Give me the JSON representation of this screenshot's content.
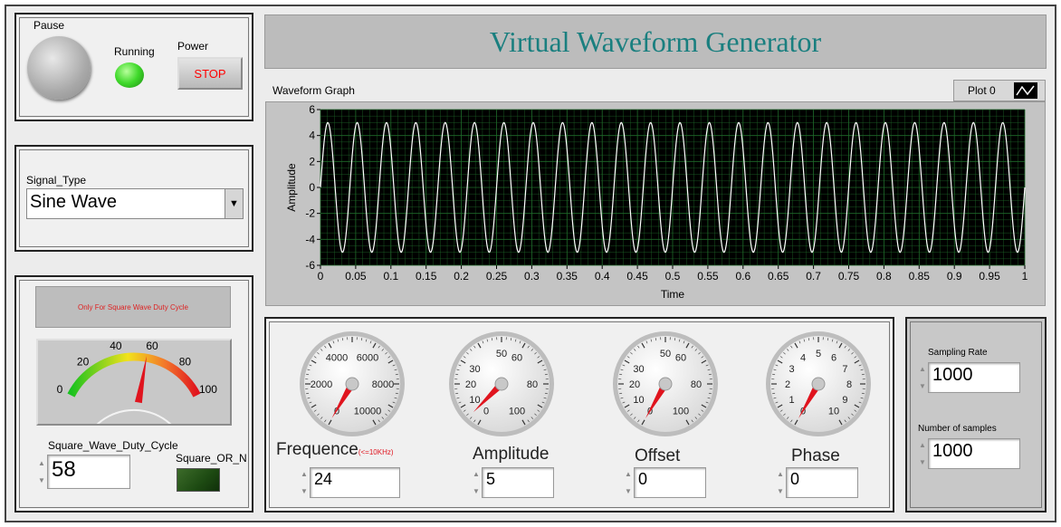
{
  "title": "Virtual Waveform Generator",
  "controls": {
    "pause_label": "Pause",
    "running_label": "Running",
    "power_label": "Power",
    "stop_button": "STOP"
  },
  "signal": {
    "label": "Signal_Type",
    "value": "Sine Wave"
  },
  "duty": {
    "note": "Only For Square Wave Duty Cycle",
    "ticks": [
      "0",
      "20",
      "40",
      "60",
      "80",
      "100"
    ],
    "value": 58,
    "label": "Square_Wave_Duty_Cycle",
    "value_text": "58",
    "led_label": "Square_OR_N"
  },
  "graph": {
    "label": "Waveform Graph",
    "plot_legend": "Plot 0",
    "xlabel": "Time",
    "ylabel": "Amplitude",
    "xticks": [
      "0",
      "0.05",
      "0.1",
      "0.15",
      "0.2",
      "0.25",
      "0.3",
      "0.35",
      "0.4",
      "0.45",
      "0.5",
      "0.55",
      "0.6",
      "0.65",
      "0.7",
      "0.75",
      "0.8",
      "0.85",
      "0.9",
      "0.95",
      "1"
    ],
    "yticks": [
      "6",
      "4",
      "2",
      "0",
      "-2",
      "-4",
      "-6"
    ]
  },
  "chart_data": {
    "type": "line",
    "function": "sine",
    "frequency": 24,
    "amplitude": 5,
    "offset": 0,
    "phase": 0,
    "samples": 1000,
    "sampling_rate": 1000,
    "xlim": [
      0,
      1
    ],
    "ylim": [
      -6,
      6
    ],
    "xlabel": "Time",
    "ylabel": "Amplitude",
    "legend": "Plot 0",
    "grid": true,
    "line_color": "#ffffff",
    "background_color": "#000000",
    "grid_color": "#1f6b2a"
  },
  "dials": [
    {
      "name": "Frequence",
      "sub": "(<=10KHz)",
      "ticks": [
        "0",
        "2000",
        "4000",
        "6000",
        "8000",
        "10000"
      ],
      "min": 0,
      "max": 10000,
      "value": 24,
      "value_text": "24"
    },
    {
      "name": "Amplitude",
      "sub": "",
      "ticks": [
        "0",
        "10",
        "20",
        "30",
        "40",
        "50",
        "60",
        "70",
        "80",
        "90",
        "100"
      ],
      "show": [
        "0",
        "10",
        "20",
        "30",
        "50",
        "60",
        "80",
        "100"
      ],
      "min": 0,
      "max": 100,
      "value": 5,
      "value_text": "5"
    },
    {
      "name": "Offset",
      "sub": "",
      "ticks": [
        "0",
        "10",
        "20",
        "30",
        "40",
        "50",
        "60",
        "70",
        "80",
        "90",
        "100"
      ],
      "show": [
        "0",
        "10",
        "20",
        "30",
        "50",
        "60",
        "80",
        "100"
      ],
      "min": 0,
      "max": 100,
      "value": 0,
      "value_text": "0"
    },
    {
      "name": "Phase",
      "sub": "",
      "ticks": [
        "0",
        "1",
        "2",
        "3",
        "4",
        "5",
        "6",
        "7",
        "8",
        "9",
        "10"
      ],
      "show": [
        "0",
        "1",
        "2",
        "3",
        "4",
        "5",
        "6",
        "7",
        "8",
        "9",
        "10"
      ],
      "min": 0,
      "max": 10,
      "value": 0,
      "value_text": "0"
    }
  ],
  "sampling": {
    "rate_label": "Sampling Rate",
    "rate_value": "1000",
    "samples_label": "Number of samples",
    "samples_value": "1000"
  },
  "colors": {
    "title": "#1a7f7f",
    "stop_text": "#ff0000",
    "running_led": "#3fd92a",
    "needle": "#e0141e",
    "square_led": "#1d4a12"
  }
}
